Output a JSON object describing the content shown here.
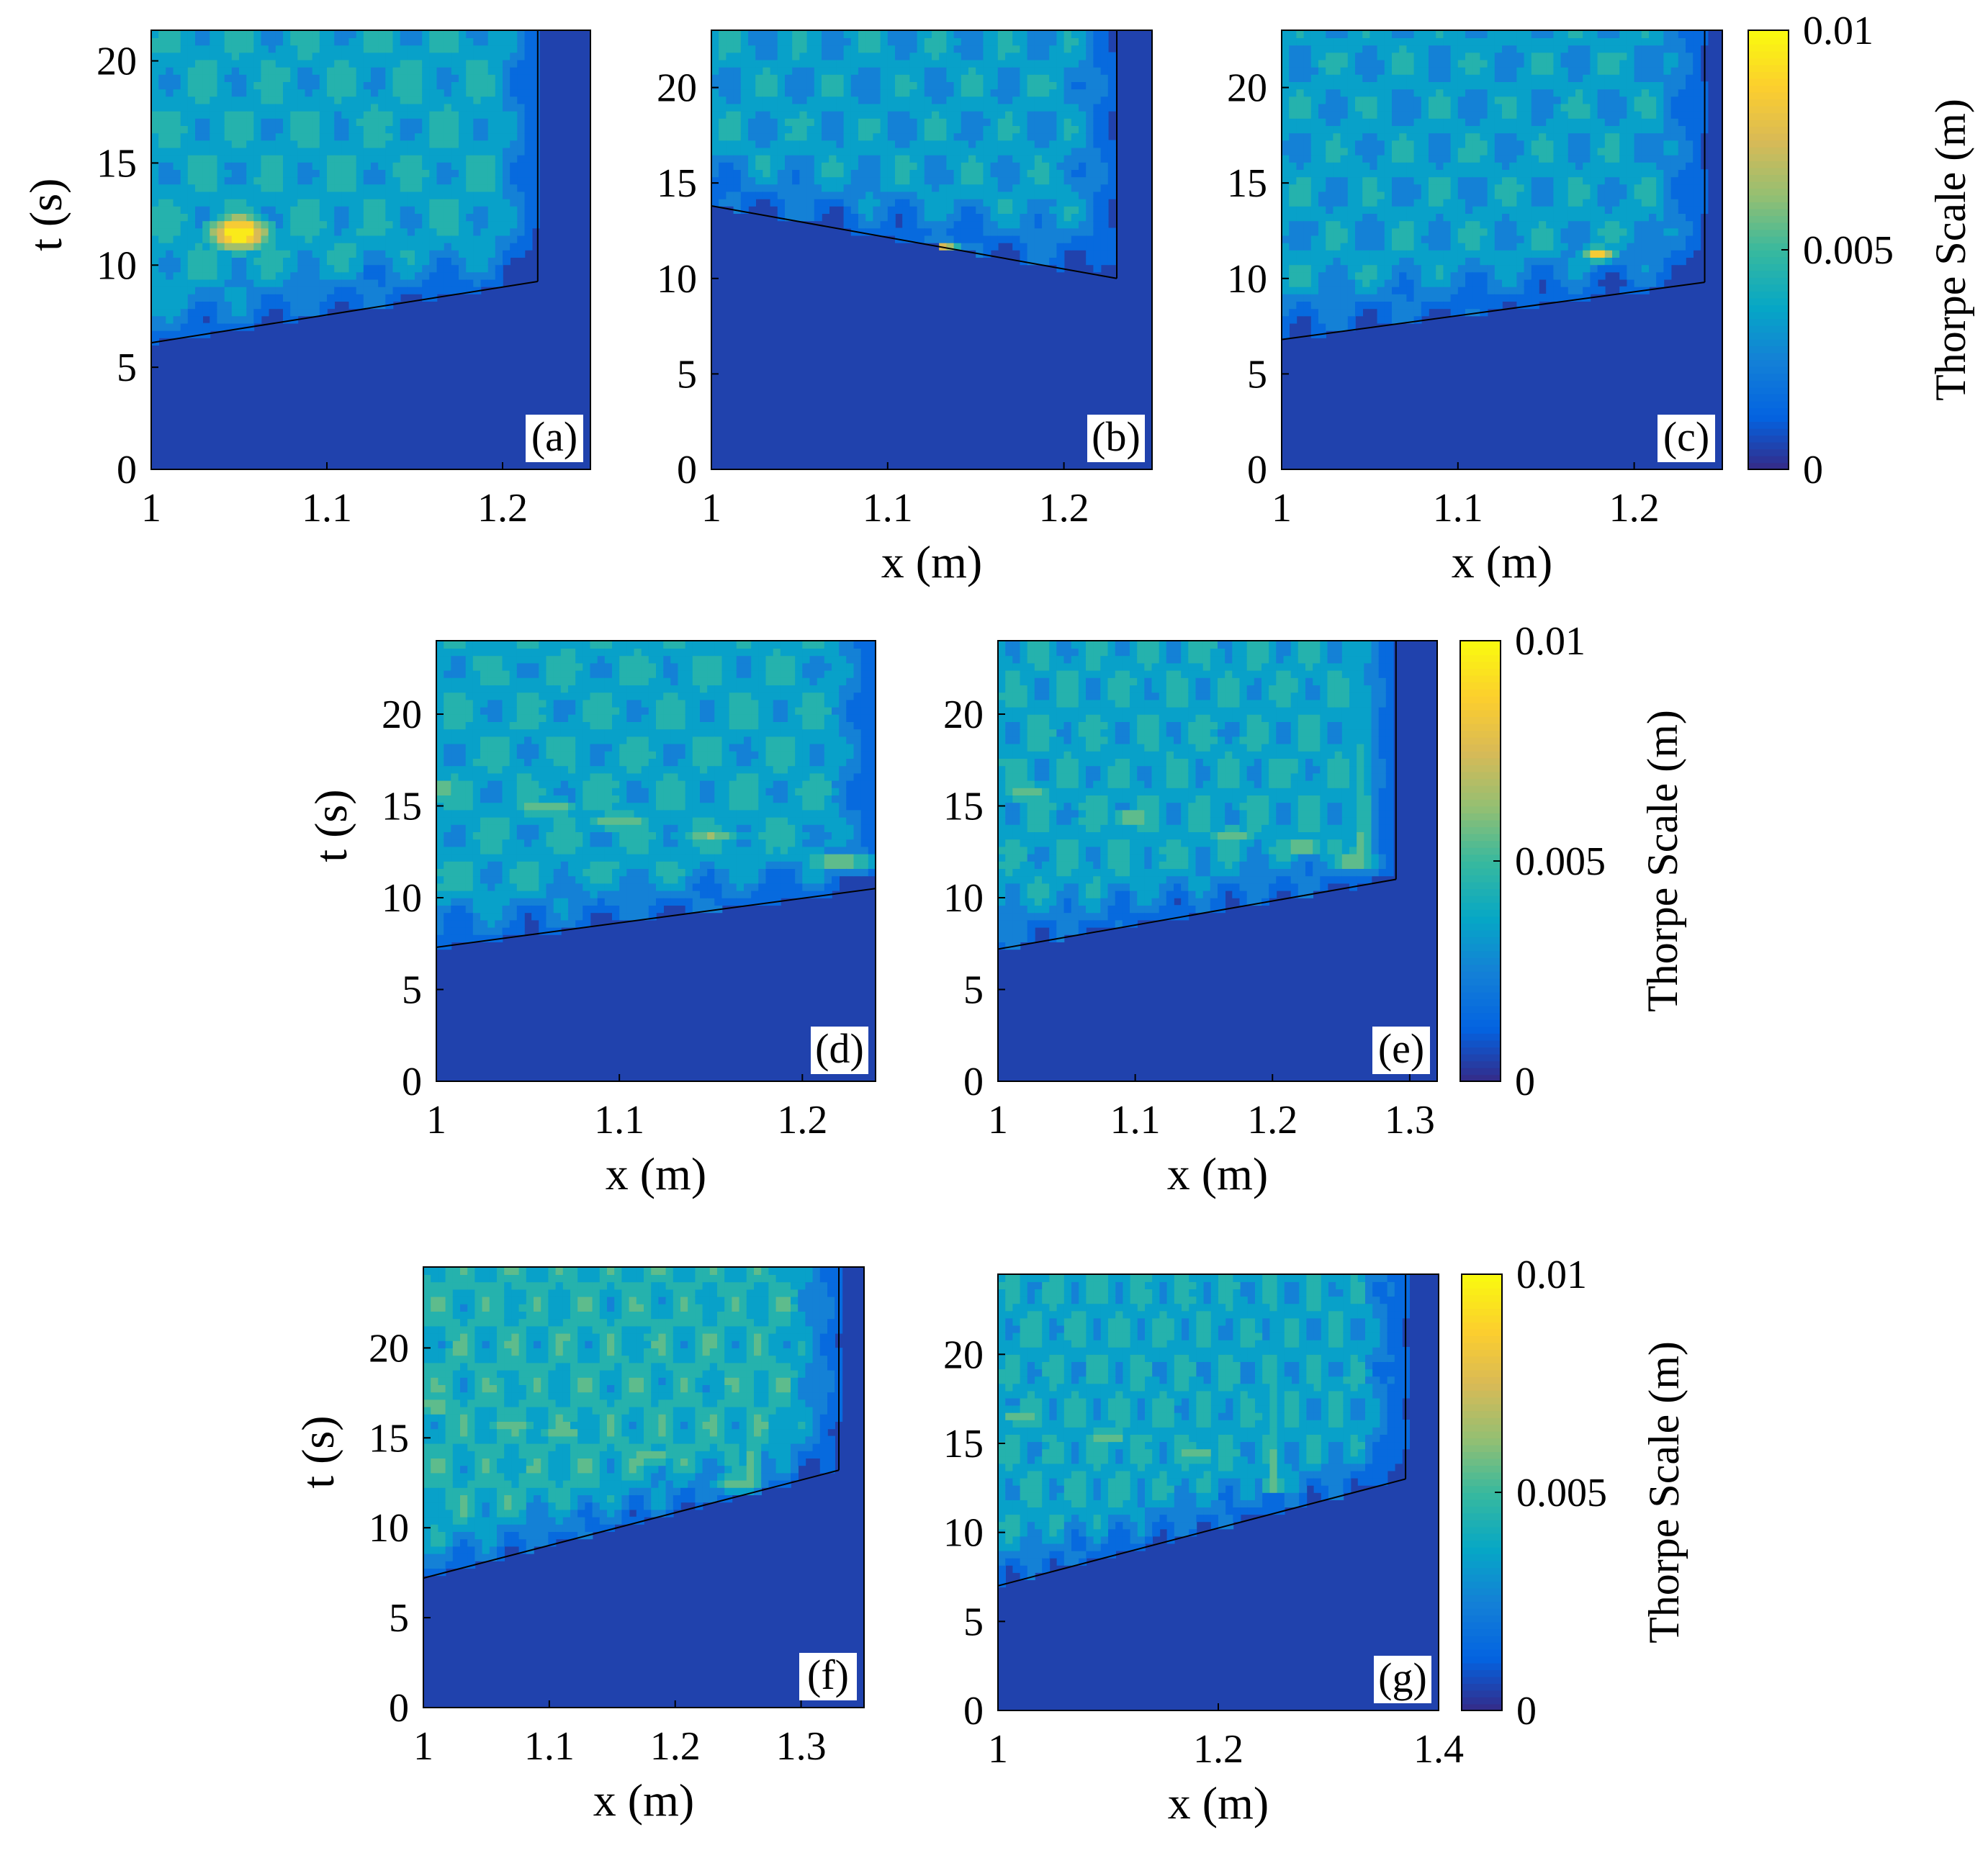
{
  "chart_data": {
    "type": "heatmap",
    "description_kind": "filled contour",
    "colormap": "parula",
    "zlim": [
      0,
      0.01
    ],
    "panels": [
      {
        "id": "a",
        "label": "(a)",
        "xlim": [
          1,
          1.25
        ],
        "ylim": [
          0,
          21.5
        ],
        "xticks": [
          1,
          1.1,
          1.2
        ],
        "xtick_labels": [
          "1",
          "1.1",
          "1.2"
        ],
        "yticks": [
          0,
          5,
          10,
          15,
          20
        ],
        "ytick_labels": [
          "0",
          "5",
          "10",
          "15",
          "20"
        ],
        "xlabel": "",
        "ylabel": "t (s)",
        "front": {
          "t_at_x0": 6.2,
          "t_at_edge": 9.2,
          "x_edge": 1.22
        },
        "background_level": 0.005,
        "peak": {
          "x": 1.05,
          "t": 11.6,
          "value": 0.01,
          "sx": 0.022,
          "st": 1.1
        },
        "streak_peaks": [],
        "column_peak": null
      },
      {
        "id": "b",
        "label": "(b)",
        "xlim": [
          1,
          1.25
        ],
        "ylim": [
          0,
          23
        ],
        "xticks": [
          1,
          1.1,
          1.2
        ],
        "xtick_labels": [
          "1",
          "1.1",
          "1.2"
        ],
        "yticks": [
          0,
          5,
          10,
          15,
          20
        ],
        "ytick_labels": [
          "0",
          "5",
          "10",
          "15",
          "20"
        ],
        "xlabel": "x (m)",
        "ylabel": "",
        "front": {
          "t_at_x0": 13.8,
          "t_at_edge": 10.0,
          "x_edge": 1.23
        },
        "background_level": 0.0045,
        "peak": {
          "x": 1.13,
          "t": 11.4,
          "value": 0.0095,
          "sx": 0.014,
          "st": 0.6
        },
        "streak_peaks": [],
        "column_peak": null
      },
      {
        "id": "c",
        "label": "(c)",
        "xlim": [
          1,
          1.25
        ],
        "ylim": [
          0,
          23
        ],
        "xticks": [
          1,
          1.1,
          1.2
        ],
        "xtick_labels": [
          "1",
          "1.1",
          "1.2"
        ],
        "yticks": [
          0,
          5,
          10,
          15,
          20
        ],
        "ytick_labels": [
          "0",
          "5",
          "10",
          "15",
          "20"
        ],
        "xlabel": "x (m)",
        "ylabel": "",
        "front": {
          "t_at_x0": 6.8,
          "t_at_edge": 9.8,
          "x_edge": 1.24
        },
        "background_level": 0.0045,
        "peak": {
          "x": 1.18,
          "t": 11.3,
          "value": 0.0085,
          "sx": 0.012,
          "st": 0.5
        },
        "streak_peaks": [],
        "column_peak": null
      },
      {
        "id": "d",
        "label": "(d)",
        "xlim": [
          1,
          1.24
        ],
        "ylim": [
          0,
          24
        ],
        "xticks": [
          1,
          1.1,
          1.2
        ],
        "xtick_labels": [
          "1",
          "1.1",
          "1.2"
        ],
        "yticks": [
          0,
          5,
          10,
          15,
          20
        ],
        "ytick_labels": [
          "0",
          "5",
          "10",
          "15",
          "20"
        ],
        "xlabel": "x (m)",
        "ylabel": "t (s)",
        "front": {
          "t_at_x0": 7.3,
          "t_at_edge": 10.5,
          "x_edge": 1.24
        },
        "background_level": 0.005,
        "peak": null,
        "streak_peaks": [
          {
            "x": 1.0,
            "t": 16.0
          },
          {
            "x": 1.06,
            "t": 14.9
          },
          {
            "x": 1.1,
            "t": 14.2
          },
          {
            "x": 1.15,
            "t": 13.4
          },
          {
            "x": 1.22,
            "t": 12.0
          }
        ],
        "column_peak": null
      },
      {
        "id": "e",
        "label": "(e)",
        "xlim": [
          1,
          1.32
        ],
        "ylim": [
          0,
          24
        ],
        "xticks": [
          1,
          1.1,
          1.2,
          1.3
        ],
        "xtick_labels": [
          "1",
          "1.1",
          "1.2",
          "1.3"
        ],
        "yticks": [
          0,
          5,
          10,
          15,
          20
        ],
        "ytick_labels": [
          "0",
          "5",
          "10",
          "15",
          "20"
        ],
        "xlabel": "x (m)",
        "ylabel": "",
        "front": {
          "t_at_x0": 7.2,
          "t_at_edge": 11.0,
          "x_edge": 1.29
        },
        "background_level": 0.005,
        "peak": null,
        "streak_peaks": [
          {
            "x": 1.02,
            "t": 15.8
          },
          {
            "x": 1.1,
            "t": 14.4
          },
          {
            "x": 1.17,
            "t": 13.4
          },
          {
            "x": 1.22,
            "t": 12.8
          },
          {
            "x": 1.26,
            "t": 12.0
          }
        ],
        "column_peak": {
          "x": 1.265,
          "t": 12.0
        }
      },
      {
        "id": "f",
        "label": "(f)",
        "xlim": [
          1,
          1.35
        ],
        "ylim": [
          0,
          24.5
        ],
        "xticks": [
          1,
          1.1,
          1.2,
          1.3
        ],
        "xtick_labels": [
          "1",
          "1.1",
          "1.2",
          "1.3"
        ],
        "yticks": [
          0,
          5,
          10,
          15,
          20
        ],
        "ytick_labels": [
          "0",
          "5",
          "10",
          "15",
          "20"
        ],
        "xlabel": "x (m)",
        "ylabel": "t (s)",
        "front": {
          "t_at_x0": 7.2,
          "t_at_edge": 13.2,
          "x_edge": 1.33
        },
        "background_level": 0.0055,
        "peak": null,
        "streak_peaks": [
          {
            "x": 1.01,
            "t": 16.8
          },
          {
            "x": 1.07,
            "t": 15.8
          },
          {
            "x": 1.11,
            "t": 15.2
          },
          {
            "x": 1.18,
            "t": 14.0
          },
          {
            "x": 1.25,
            "t": 12.5
          }
        ],
        "column_peak": {
          "x": 1.26,
          "t": 12.6
        }
      },
      {
        "id": "g",
        "label": "(g)",
        "xlim": [
          1,
          1.4
        ],
        "ylim": [
          0,
          24.5
        ],
        "xticks": [
          1,
          1.2,
          1.4
        ],
        "xtick_labels": [
          "1",
          "1.2",
          "1.4"
        ],
        "yticks": [
          0,
          5,
          10,
          15,
          20
        ],
        "ytick_labels": [
          "0",
          "5",
          "10",
          "15",
          "20"
        ],
        "xlabel": "x (m)",
        "ylabel": "",
        "front": {
          "t_at_x0": 7.0,
          "t_at_edge": 13.0,
          "x_edge": 1.37
        },
        "background_level": 0.005,
        "peak": null,
        "streak_peaks": [
          {
            "x": 1.02,
            "t": 16.5
          },
          {
            "x": 1.1,
            "t": 15.4
          },
          {
            "x": 1.18,
            "t": 14.4
          }
        ],
        "column_peak": {
          "x": 1.25,
          "t": 12.8
        }
      }
    ],
    "colorbars": [
      {
        "id": "cb1",
        "ticks": [
          0,
          0.005,
          0.01
        ],
        "tick_labels": [
          "0",
          "0.005",
          "0.01"
        ],
        "label": "Thorpe Scale (m)"
      },
      {
        "id": "cb2",
        "ticks": [
          0,
          0.005,
          0.01
        ],
        "tick_labels": [
          "0",
          "0.005",
          "0.01"
        ],
        "label": "Thorpe Scale (m)"
      },
      {
        "id": "cb3",
        "ticks": [
          0,
          0.005,
          0.01
        ],
        "tick_labels": [
          "0",
          "0.005",
          "0.01"
        ],
        "label": "Thorpe Scale (m)"
      }
    ]
  }
}
